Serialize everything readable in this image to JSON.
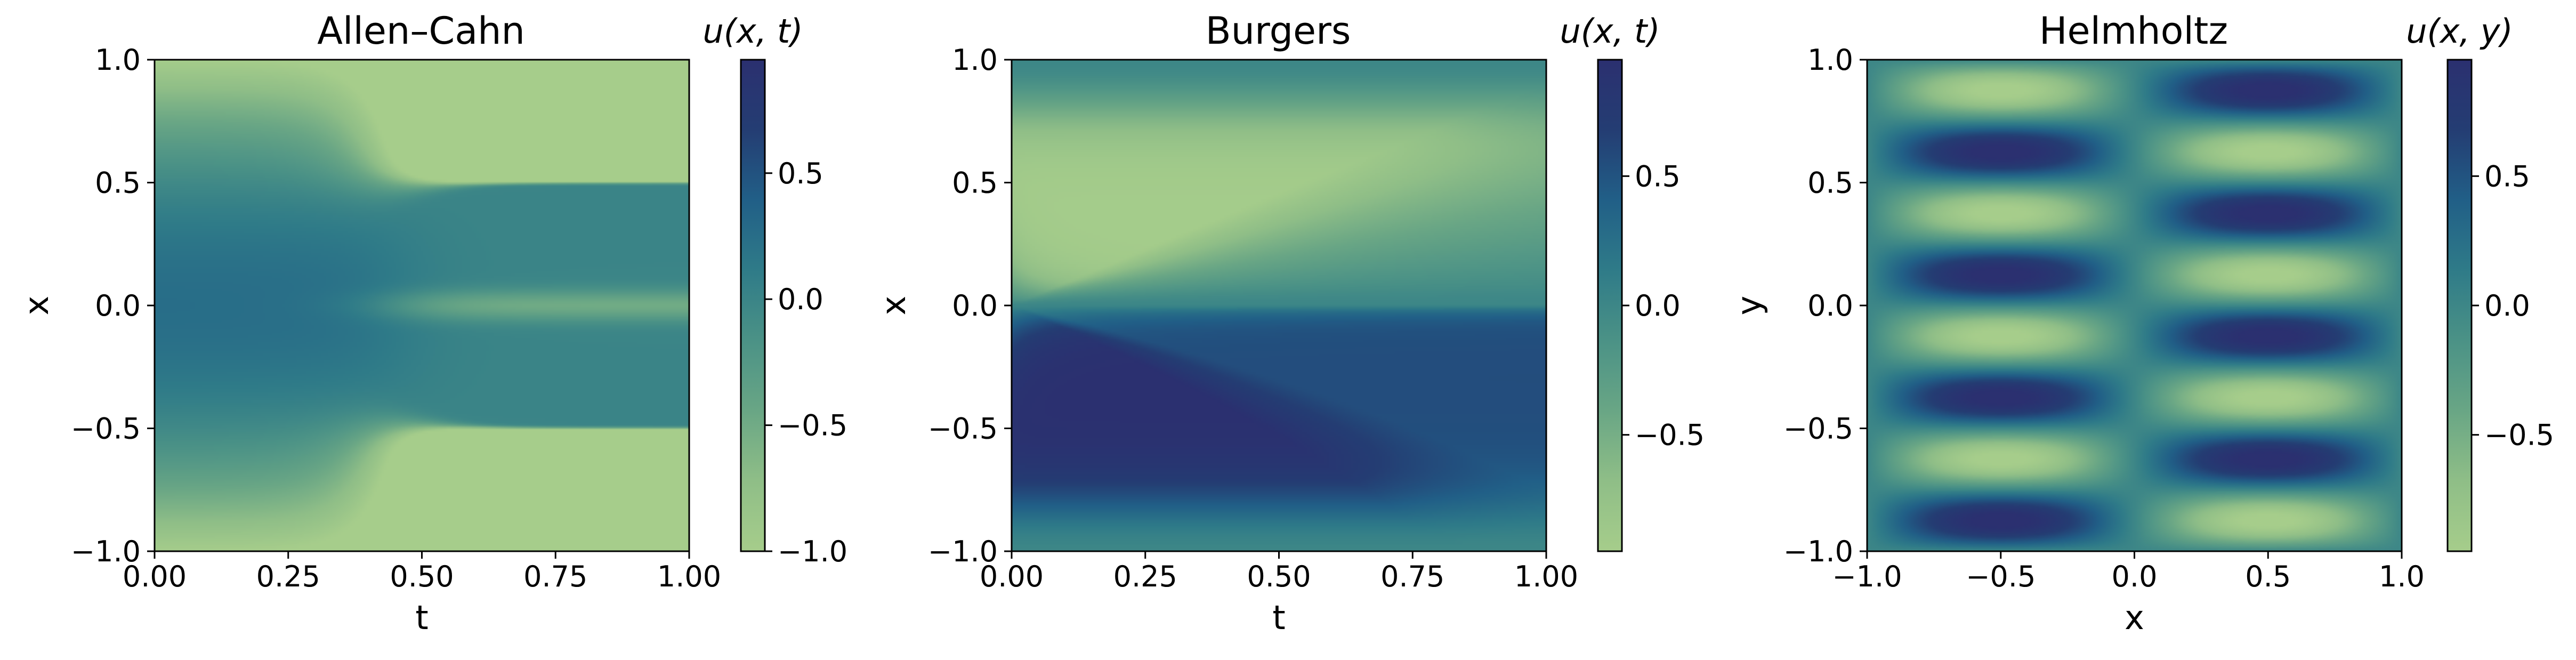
{
  "figure": {
    "colormap": [
      "#a6cd8b",
      "#8fbe87",
      "#69a685",
      "#4b9286",
      "#2f7b88",
      "#215f87",
      "#243d73",
      "#2b3070"
    ]
  },
  "chart_data": [
    {
      "type": "heatmap",
      "title": "Allen–Cahn",
      "xlabel": "t",
      "ylabel": "x",
      "xlim": [
        0,
        1
      ],
      "ylim": [
        -1,
        1
      ],
      "xticks": [
        "0.00",
        "0.25",
        "0.50",
        "0.75",
        "1.00"
      ],
      "xtick_values": [
        0,
        0.25,
        0.5,
        0.75,
        1
      ],
      "yticks": [
        "−1.0",
        "−0.5",
        "0.0",
        "0.5",
        "1.0"
      ],
      "ytick_values": [
        -1,
        -0.5,
        0,
        0.5,
        1
      ],
      "field": "allen_cahn",
      "colorbar": {
        "label": "u(x, t)",
        "range": [
          -1,
          0.95
        ],
        "ticks": [
          "−1.0",
          "−0.5",
          "0.0",
          "0.5"
        ],
        "tick_values": [
          -1,
          -0.5,
          0,
          0.5
        ]
      }
    },
    {
      "type": "heatmap",
      "title": "Burgers",
      "xlabel": "t",
      "ylabel": "x",
      "xlim": [
        0,
        1
      ],
      "ylim": [
        -1,
        1
      ],
      "xticks": [
        "0.00",
        "0.25",
        "0.50",
        "0.75",
        "1.00"
      ],
      "xtick_values": [
        0,
        0.25,
        0.5,
        0.75,
        1
      ],
      "yticks": [
        "−1.0",
        "−0.5",
        "0.0",
        "0.5",
        "1.0"
      ],
      "ytick_values": [
        -1,
        -0.5,
        0,
        0.5,
        1
      ],
      "field": "burgers",
      "colorbar": {
        "label": "u(x, t)",
        "range": [
          -0.95,
          0.95
        ],
        "ticks": [
          "−0.5",
          "0.0",
          "0.5"
        ],
        "tick_values": [
          -0.5,
          0,
          0.5
        ]
      }
    },
    {
      "type": "heatmap",
      "title": "Helmholtz",
      "xlabel": "x",
      "ylabel": "y",
      "xlim": [
        -1,
        1
      ],
      "ylim": [
        -1,
        1
      ],
      "xticks": [
        "−1.0",
        "−0.5",
        "0.0",
        "0.5",
        "1.0"
      ],
      "xtick_values": [
        -1,
        -0.5,
        0,
        0.5,
        1
      ],
      "yticks": [
        "−1.0",
        "−0.5",
        "0.0",
        "0.5",
        "1.0"
      ],
      "ytick_values": [
        -1,
        -0.5,
        0,
        0.5,
        1
      ],
      "field": "helmholtz",
      "colorbar": {
        "label": "u(x, y)",
        "range": [
          -0.95,
          0.95
        ],
        "ticks": [
          "−0.5",
          "0.0",
          "0.5"
        ],
        "tick_values": [
          -0.5,
          0,
          0.5
        ]
      }
    }
  ]
}
